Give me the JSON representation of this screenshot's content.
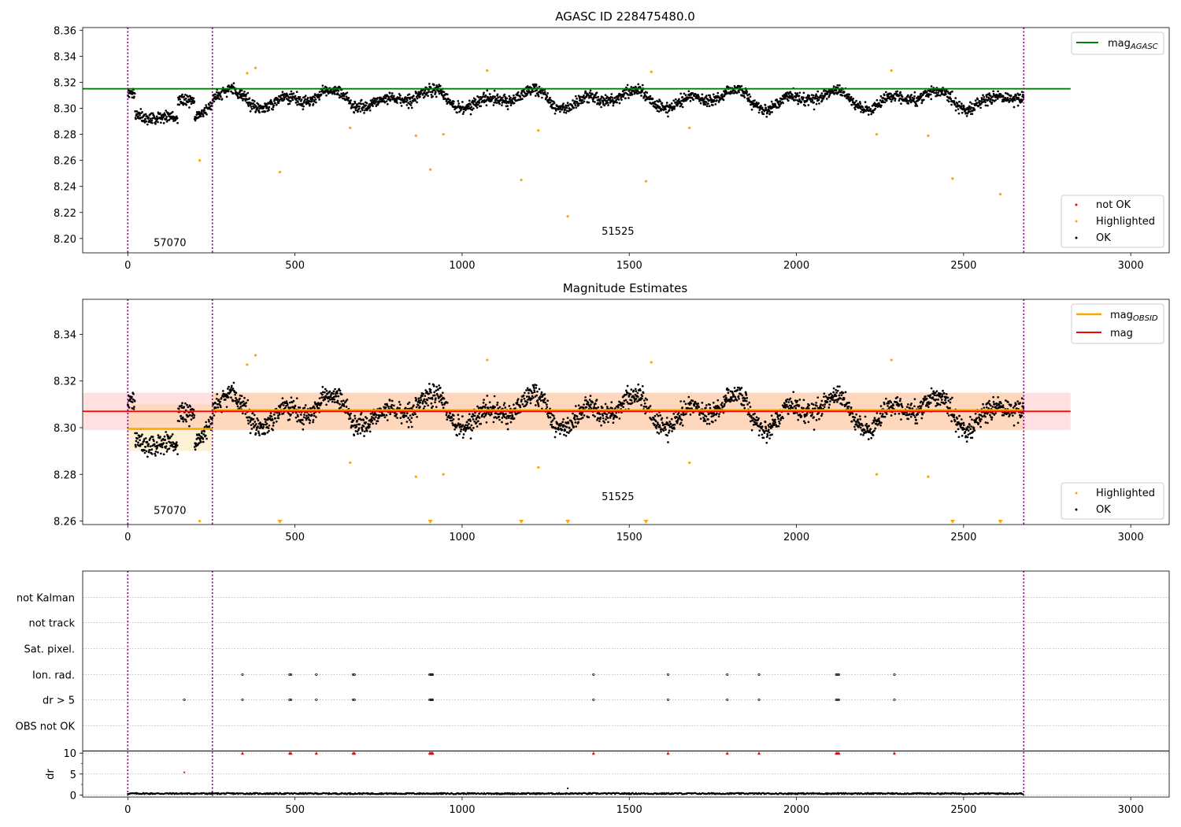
{
  "chart_data": [
    {
      "type": "scatter",
      "title": "AGASC ID 228475480.0",
      "xlim": [
        -135,
        3115
      ],
      "ylim": [
        8.189,
        8.362
      ],
      "xticks": [
        0,
        500,
        1000,
        1500,
        2000,
        2500,
        3000
      ],
      "yticks": [
        8.2,
        8.22,
        8.24,
        8.26,
        8.28,
        8.3,
        8.32,
        8.34,
        8.36
      ],
      "grid": false,
      "vlines": [
        0,
        253,
        2680
      ],
      "obsid_labels": [
        {
          "text": "57070",
          "x": 126,
          "y": 8.194
        },
        {
          "text": "51525",
          "x": 1466,
          "y": 8.203
        }
      ],
      "reference_line": {
        "name": "mag_AGASC",
        "value": 8.315,
        "x_range": [
          -135,
          2820
        ],
        "color": "#008000"
      },
      "series": [
        {
          "name": "not OK",
          "color": "#ff0000",
          "points": []
        },
        {
          "name": "Highlighted",
          "color": "#ffa500",
          "points": [
            [
              215,
              8.26
            ],
            [
              357,
              8.327
            ],
            [
              382,
              8.331
            ],
            [
              455,
              8.251
            ],
            [
              665,
              8.285
            ],
            [
              862,
              8.279
            ],
            [
              905,
              8.253
            ],
            [
              944,
              8.28
            ],
            [
              1075,
              8.329
            ],
            [
              1177,
              8.245
            ],
            [
              1228,
              8.283
            ],
            [
              1316,
              8.217
            ],
            [
              1550,
              8.244
            ],
            [
              1566,
              8.328
            ],
            [
              1680,
              8.285
            ],
            [
              2240,
              8.28
            ],
            [
              2284,
              8.329
            ],
            [
              2394,
              8.279
            ],
            [
              2467,
              8.246
            ],
            [
              2610,
              8.234
            ]
          ]
        },
        {
          "name": "OK",
          "color": "#000000",
          "generator": "quasi-periodic scatter about 8.307, 2680 points"
        }
      ],
      "legend": {
        "upper": [
          "mag_AGASC"
        ],
        "lower": [
          "not OK",
          "Highlighted",
          "OK"
        ],
        "placement": "right"
      }
    },
    {
      "type": "scatter",
      "title": "Magnitude Estimates",
      "xlim": [
        -135,
        3115
      ],
      "ylim": [
        8.2585,
        8.355
      ],
      "xticks": [
        0,
        500,
        1000,
        1500,
        2000,
        2500,
        3000
      ],
      "yticks": [
        8.26,
        8.28,
        8.3,
        8.32,
        8.34
      ],
      "grid": false,
      "vlines": [
        0,
        253,
        2680
      ],
      "obsid_labels": [
        {
          "text": "57070",
          "x": 126,
          "y": 8.263
        },
        {
          "text": "51525",
          "x": 1466,
          "y": 8.269
        }
      ],
      "mag": {
        "name": "mag",
        "value": 8.307,
        "band": [
          8.299,
          8.315
        ],
        "x_range": [
          -135,
          2820
        ],
        "color": "#ff0000"
      },
      "mag_obsid": [
        {
          "x_range": [
            0,
            253
          ],
          "value": 8.2995,
          "band": [
            8.29,
            8.31
          ]
        },
        {
          "x_range": [
            253,
            2680
          ],
          "value": 8.3075,
          "band": [
            8.299,
            8.315
          ]
        }
      ],
      "offscale_markers": [
        455,
        905,
        1177,
        1316,
        1550,
        2467,
        2610
      ],
      "legend": {
        "upper": [
          "mag_OBSID",
          "mag"
        ],
        "lower": [
          "Highlighted",
          "OK"
        ],
        "placement": "right"
      }
    },
    {
      "type": "scatter",
      "flag_rows": [
        "not Kalman",
        "not track",
        "Sat. pixel.",
        "Ion. rad.",
        "dr > 5",
        "OBS not OK"
      ],
      "flag_events": {
        "Ion. rad.": [
          343,
          484,
          488,
          564,
          674,
          678,
          903,
          906,
          909,
          912,
          1393,
          1616,
          1793,
          1888,
          2119,
          2123,
          2127,
          2293
        ],
        "dr > 5": [
          169,
          343,
          484,
          488,
          564,
          674,
          678,
          903,
          906,
          909,
          912,
          1393,
          1616,
          1793,
          1888,
          2119,
          2123,
          2127,
          2293
        ]
      },
      "dr": {
        "ylabel": "dr",
        "ylim": [
          -0.5,
          10.5
        ],
        "yticks": [
          0,
          5,
          10
        ],
        "clip_value": 10,
        "clipped_x": [
          343,
          484,
          488,
          564,
          674,
          678,
          903,
          906,
          909,
          912,
          1393,
          1616,
          1793,
          1888,
          2119,
          2123,
          2127,
          2293
        ],
        "outliers": [
          [
            169,
            5.4
          ],
          [
            1316,
            1.6
          ]
        ]
      },
      "xlim": [
        -135,
        3115
      ],
      "xticks": [
        0,
        500,
        1000,
        1500,
        2000,
        2500,
        3000
      ],
      "vlines": [
        0,
        253,
        2680
      ]
    }
  ],
  "legend_labels": {
    "mag_agasc_base": "mag",
    "mag_agasc_sub": "AGASC",
    "mag_obsid_base": "mag",
    "mag_obsid_sub": "OBSID",
    "mag": "mag",
    "not_ok": "not OK",
    "highlighted": "Highlighted",
    "ok": "OK"
  },
  "colors": {
    "agasc_line": "#008000",
    "mag_line": "#ff0000",
    "mag_obsid": "#ffa500",
    "highlighted": "#ffa500",
    "not_ok": "#ff0000",
    "ok": "#000000",
    "vline": "#800080"
  }
}
